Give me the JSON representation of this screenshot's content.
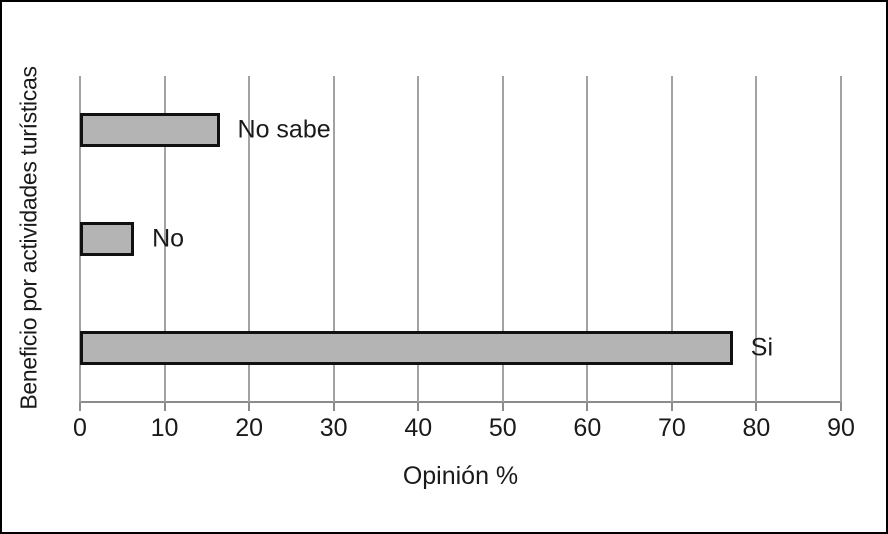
{
  "chart_data": {
    "type": "bar",
    "orientation": "horizontal",
    "title": "",
    "categories": [
      "No sabe",
      "No",
      "Si"
    ],
    "values": [
      16.5,
      6.4,
      77.2
    ],
    "xlabel": "Opinión %",
    "ylabel": "Beneficio por actividades turísticas",
    "xlim": [
      0,
      90
    ],
    "xticks": [
      0,
      10,
      20,
      30,
      40,
      50,
      60,
      70,
      80,
      90
    ],
    "grid": "vertical",
    "legend": "none",
    "bar_fill_color": "#b4b4b4",
    "bar_border_color": "#111111",
    "gridline_color": "#a2a2a2",
    "axis_color": "#8c8c8c",
    "text_color": "#1a1a1a",
    "frame_border_color": "#000000"
  }
}
